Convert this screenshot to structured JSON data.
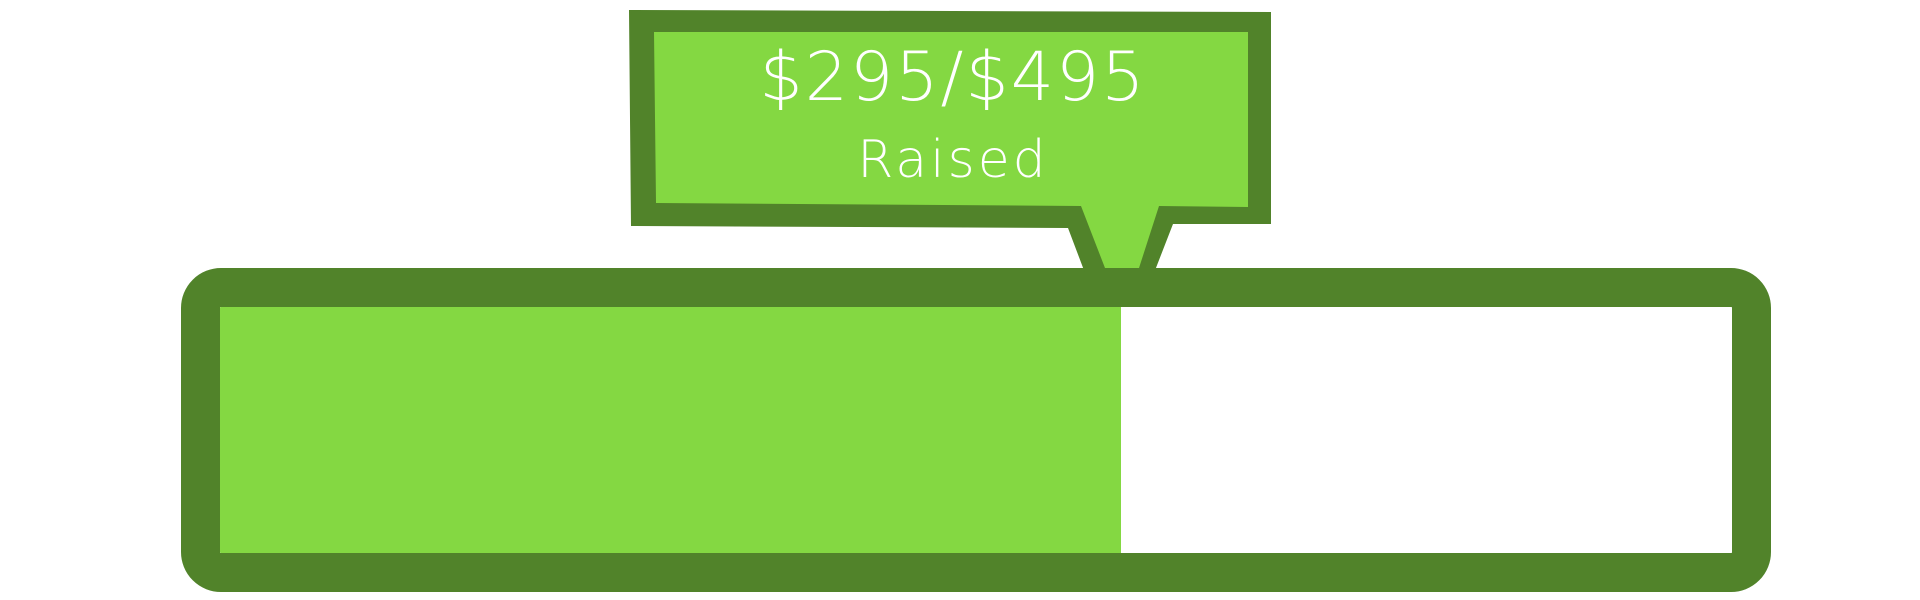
{
  "widget": {
    "raised_text": "$295/$495",
    "caption": "Raised",
    "progress_fraction": 0.596
  },
  "colors": {
    "border": "#51832a",
    "fill": "#84d842",
    "track": "#ffffff",
    "text": "#ffffff"
  }
}
